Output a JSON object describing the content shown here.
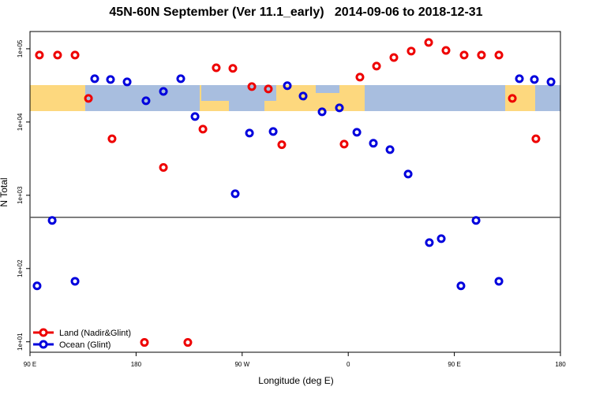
{
  "chart_data": {
    "type": "scatter",
    "title": "45N-60N September (Ver 11.1_early)   2014-09-06 to 2018-12-31",
    "x_label": "Longitude (deg E)",
    "y_label": "N Total",
    "log_y": true,
    "legend": "bottom-left",
    "hline": 500,
    "xlim": [
      90,
      540
    ],
    "xticks": [
      {
        "value": 90,
        "label": "90 E"
      },
      {
        "value": 180,
        "label": "180"
      },
      {
        "value": 270,
        "label": "90 W"
      },
      {
        "value": 360,
        "label": "0"
      },
      {
        "value": 450,
        "label": "90 E"
      },
      {
        "value": 540,
        "label": "180"
      }
    ],
    "ylim": [
      7.2,
      172000
    ],
    "yticks": [
      {
        "value": 10,
        "label": "1e+01"
      },
      {
        "value": 100,
        "label": "1e+02"
      },
      {
        "value": 1000,
        "label": "1e+03"
      },
      {
        "value": 10000,
        "label": "1e+04"
      },
      {
        "value": 100000,
        "label": "1e+05"
      }
    ],
    "series": [
      {
        "name": "Land (Nadir&Glint)",
        "color": "#ee0000",
        "x": [
          98,
          113.4,
          128.2,
          139.6,
          159.6,
          187.1,
          203.2,
          223.9,
          236.7,
          248,
          262.1,
          278.2,
          292.2,
          303.6,
          356.5,
          369.9,
          384,
          398.7,
          413.4,
          428.2,
          442.9,
          458.3,
          473,
          487.8,
          499.2,
          519.2
        ],
        "values": [
          82000,
          82000,
          82000,
          21000,
          5900,
          9.8,
          2400,
          9.8,
          8000,
          55000,
          54000,
          30500,
          28300,
          4900,
          5000,
          41000,
          58000,
          76000,
          93000,
          122000,
          95000,
          82000,
          82000,
          82000,
          21000,
          5900
        ]
      },
      {
        "name": "Ocean (Glint)",
        "color": "#0000dd",
        "x": [
          96,
          108.8,
          128.2,
          144.9,
          158.3,
          172.4,
          188.4,
          203.2,
          217.9,
          230,
          264.1,
          276.2,
          296.3,
          308.3,
          321.7,
          337.8,
          352.5,
          367.3,
          381.3,
          395.4,
          410.8,
          428.8,
          438.9,
          455.6,
          468.4,
          487.8,
          505.2,
          517.9,
          532
        ],
        "values": [
          58,
          453,
          67,
          39000,
          38100,
          35300,
          19500,
          26200,
          39000,
          11900,
          1050,
          7060,
          7430,
          31300,
          22600,
          13800,
          15600,
          7250,
          5130,
          4200,
          1950,
          226,
          256,
          58,
          453,
          67,
          39000,
          38100,
          35300
        ]
      }
    ]
  }
}
